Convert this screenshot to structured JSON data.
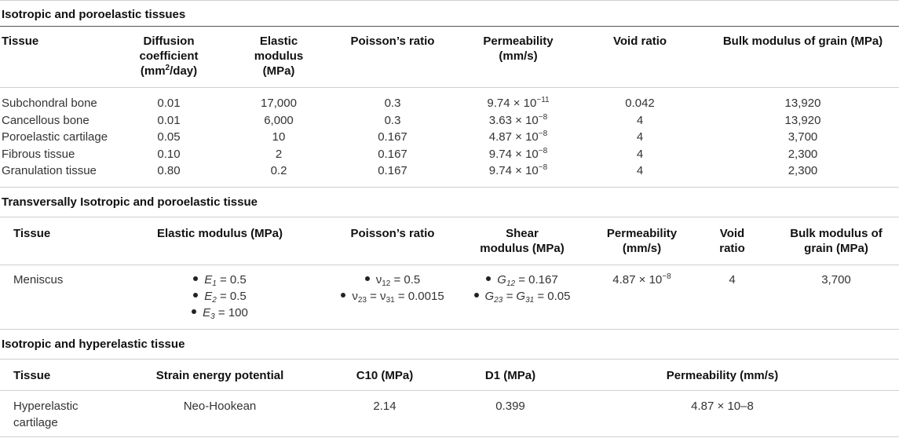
{
  "sections": [
    {
      "title": "Isotropic and poroelastic tissues",
      "headers": {
        "tissue": "Tissue",
        "diffusion_1": "Diffusion",
        "diffusion_2": "coefficient",
        "diffusion_3_pre": "(mm",
        "diffusion_3_sup": "2",
        "diffusion_3_post": "/day)",
        "elastic_1": "Elastic",
        "elastic_2": "modulus",
        "elastic_3": "(MPa)",
        "poisson": "Poisson’s ratio",
        "perm_1": "Permeability",
        "perm_2": "(mm/s)",
        "void": "Void ratio",
        "bulk": "Bulk modulus of grain (MPa)"
      },
      "rows": [
        {
          "tissue": "Subchondral bone",
          "diffusion": "0.01",
          "elastic": "17,000",
          "poisson": "0.3",
          "perm_base": "9.74 × 10",
          "perm_exp": "−11",
          "void": "0.042",
          "bulk": "13,920"
        },
        {
          "tissue": "Cancellous bone",
          "diffusion": "0.01",
          "elastic": "6,000",
          "poisson": "0.3",
          "perm_base": "3.63 × 10",
          "perm_exp": "−8",
          "void": "4",
          "bulk": "13,920"
        },
        {
          "tissue": "Poroelastic cartilage",
          "diffusion": "0.05",
          "elastic": "10",
          "poisson": "0.167",
          "perm_base": "4.87 × 10",
          "perm_exp": "−8",
          "void": "4",
          "bulk": "3,700"
        },
        {
          "tissue": "Fibrous tissue",
          "diffusion": "0.10",
          "elastic": "2",
          "poisson": "0.167",
          "perm_base": "9.74 × 10",
          "perm_exp": "−8",
          "void": "4",
          "bulk": "2,300"
        },
        {
          "tissue": "Granulation tissue",
          "diffusion": "0.80",
          "elastic": "0.2",
          "poisson": "0.167",
          "perm_base": "9.74 × 10",
          "perm_exp": "−8",
          "void": "4",
          "bulk": "2,300"
        }
      ]
    },
    {
      "title": "Transversally Isotropic and poroelastic tissue",
      "headers": {
        "tissue": "Tissue",
        "elastic": "Elastic modulus (MPa)",
        "poisson": "Poisson’s ratio",
        "shear_1": "Shear",
        "shear_2": "modulus (MPa)",
        "perm_1": "Permeability",
        "perm_2": "(mm/s)",
        "void_1": "Void",
        "void_2": "ratio",
        "bulk_1": "Bulk modulus of",
        "bulk_2": "grain (MPa)"
      },
      "row": {
        "tissue": "Meniscus",
        "elastic": [
          {
            "sym": "E",
            "sub": "1",
            "val": " = 0.5"
          },
          {
            "sym": "E",
            "sub": "2",
            "val": " = 0.5"
          },
          {
            "sym": "E",
            "sub": "3",
            "val": " = 100"
          }
        ],
        "poisson": [
          {
            "text": "ν",
            "sub": "12",
            "rest": " = 0.5"
          },
          {
            "text": "ν",
            "sub": "23",
            "mid": " = ν",
            "sub2": "31",
            "rest": " = 0.0015"
          }
        ],
        "shear": [
          {
            "sym": "G",
            "sub": "12",
            "rest": " = 0.167"
          },
          {
            "sym": "G",
            "sub": "23",
            "mid": " = G",
            "sub2": "31",
            "rest": " = 0.05"
          }
        ],
        "perm_base": "4.87 × 10",
        "perm_exp": "−8",
        "void": "4",
        "bulk": "3,700"
      }
    },
    {
      "title": "Isotropic and hyperelastic tissue",
      "headers": {
        "tissue": "Tissue",
        "strain": "Strain energy potential",
        "c10": "C10 (MPa)",
        "d1": "D1 (MPa)",
        "perm": "Permeability (mm/s)"
      },
      "row": {
        "tissue_1": "Hyperelastic",
        "tissue_2": "cartilage",
        "strain": "Neo-Hookean",
        "c10": "2.14",
        "d1": "0.399",
        "perm": "4.87 × 10–8"
      }
    }
  ]
}
